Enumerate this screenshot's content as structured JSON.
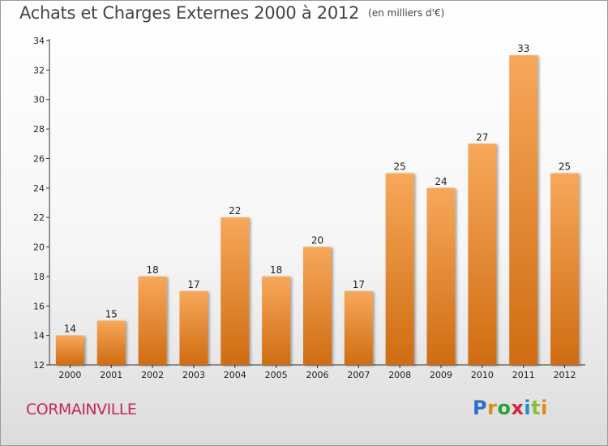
{
  "header": {
    "title": "Achats et Charges Externes 2000 à 2012",
    "unit": "(en milliers d'€)"
  },
  "footer": {
    "commune": "CORMAINVILLE",
    "logo_letters": [
      "P",
      "r",
      "o",
      "x",
      "i",
      "t",
      "i"
    ],
    "logo_colors": [
      "#2f6fcb",
      "#e08a17",
      "#2f9e3a",
      "#d7263d",
      "#1e8cd6",
      "#8bbf2a",
      "#e08a17"
    ]
  },
  "chart_data": {
    "type": "bar",
    "title": "Achats et Charges Externes 2000 à 2012",
    "categories": [
      "2000",
      "2001",
      "2002",
      "2003",
      "2004",
      "2005",
      "2006",
      "2007",
      "2008",
      "2009",
      "2010",
      "2011",
      "2012"
    ],
    "values": [
      14,
      15,
      18,
      17,
      22,
      18,
      20,
      17,
      25,
      24,
      27,
      33,
      25
    ],
    "ylim": [
      12,
      34
    ],
    "yticks": [
      12,
      14,
      16,
      18,
      20,
      22,
      24,
      26,
      28,
      30,
      32,
      34
    ],
    "grid": false,
    "bar_color_top": "#f7a85a",
    "bar_color_bottom": "#cf6c12"
  }
}
